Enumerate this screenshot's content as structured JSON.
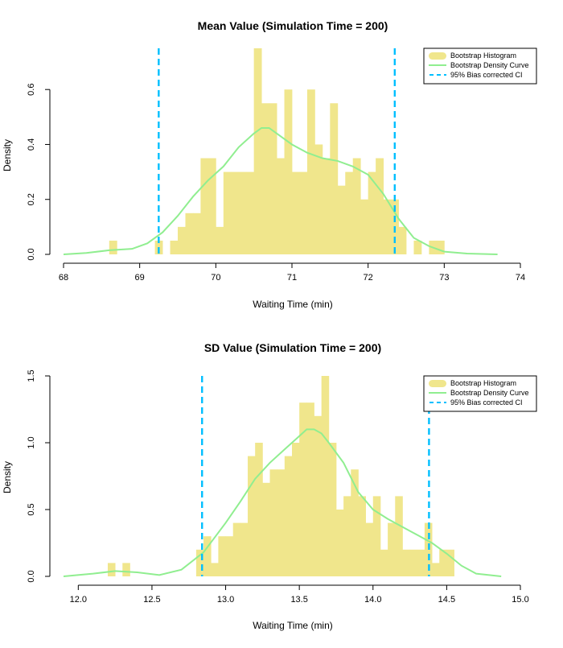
{
  "colors": {
    "histogram": "#F0E68C",
    "density": "#90EE90",
    "ci": "#00BFFF",
    "axis": "#000000"
  },
  "chart_data": [
    {
      "type": "bar",
      "title": "Mean Value (Simulation Time = 200)",
      "xlabel": "Waiting Time (min)",
      "ylabel": "Density",
      "xlim": [
        68,
        74
      ],
      "ylim": [
        0,
        0.75
      ],
      "x_ticks": [
        68,
        69,
        70,
        71,
        72,
        73,
        74
      ],
      "y_ticks": [
        0.0,
        0.2,
        0.4,
        0.6
      ],
      "x_tick_labels": [
        "68",
        "69",
        "70",
        "71",
        "72",
        "73",
        "74"
      ],
      "y_tick_labels": [
        "0.0",
        "0.2",
        "0.4",
        "0.6"
      ],
      "legend": {
        "position": "top-right",
        "entries": [
          "Bootstrap Histogram",
          "Bootstrap Density Curve",
          "95% Bias corrected CI"
        ]
      },
      "histogram": {
        "name": "Bootstrap Histogram",
        "bin_width": 0.1,
        "bins": [
          [
            68.6,
            0.05
          ],
          [
            69.2,
            0.05
          ],
          [
            69.4,
            0.05
          ],
          [
            69.5,
            0.1
          ],
          [
            69.6,
            0.15
          ],
          [
            69.7,
            0.15
          ],
          [
            69.8,
            0.35
          ],
          [
            69.9,
            0.35
          ],
          [
            70.0,
            0.1
          ],
          [
            70.1,
            0.3
          ],
          [
            70.2,
            0.3
          ],
          [
            70.3,
            0.3
          ],
          [
            70.4,
            0.3
          ],
          [
            70.5,
            0.75
          ],
          [
            70.6,
            0.55
          ],
          [
            70.7,
            0.55
          ],
          [
            70.8,
            0.35
          ],
          [
            70.9,
            0.6
          ],
          [
            71.0,
            0.3
          ],
          [
            71.1,
            0.3
          ],
          [
            71.2,
            0.6
          ],
          [
            71.3,
            0.4
          ],
          [
            71.4,
            0.35
          ],
          [
            71.5,
            0.55
          ],
          [
            71.6,
            0.25
          ],
          [
            71.7,
            0.3
          ],
          [
            71.8,
            0.35
          ],
          [
            71.9,
            0.2
          ],
          [
            72.0,
            0.3
          ],
          [
            72.1,
            0.35
          ],
          [
            72.2,
            0.2
          ],
          [
            72.3,
            0.2
          ],
          [
            72.4,
            0.1
          ],
          [
            72.6,
            0.05
          ],
          [
            72.8,
            0.05
          ],
          [
            72.9,
            0.05
          ]
        ]
      },
      "density": {
        "name": "Bootstrap Density Curve",
        "x": [
          68.0,
          68.3,
          68.6,
          68.9,
          69.1,
          69.3,
          69.5,
          69.7,
          69.9,
          70.1,
          70.3,
          70.5,
          70.6,
          70.7,
          70.8,
          71.0,
          71.2,
          71.4,
          71.6,
          71.8,
          72.0,
          72.2,
          72.4,
          72.6,
          72.8,
          73.0,
          73.3,
          73.7
        ],
        "y": [
          0.0,
          0.005,
          0.015,
          0.02,
          0.04,
          0.08,
          0.14,
          0.21,
          0.27,
          0.32,
          0.39,
          0.44,
          0.46,
          0.46,
          0.44,
          0.4,
          0.37,
          0.35,
          0.34,
          0.32,
          0.29,
          0.22,
          0.13,
          0.06,
          0.03,
          0.01,
          0.003,
          0.0
        ]
      },
      "ci": {
        "name": "95% Bias corrected CI",
        "lower": 69.25,
        "upper": 72.35
      }
    },
    {
      "type": "bar",
      "title": "SD Value (Simulation Time = 200)",
      "xlabel": "Waiting Time (min)",
      "ylabel": "Density",
      "xlim": [
        11.9,
        15.0
      ],
      "ylim": [
        0,
        1.5
      ],
      "x_ticks": [
        12.0,
        12.5,
        13.0,
        13.5,
        14.0,
        14.5,
        15.0
      ],
      "y_ticks": [
        0.0,
        0.5,
        1.0,
        1.5
      ],
      "x_tick_labels": [
        "12.0",
        "12.5",
        "13.0",
        "13.5",
        "14.0",
        "14.5",
        "15.0"
      ],
      "y_tick_labels": [
        "0.0",
        "0.5",
        "1.0",
        "1.5"
      ],
      "legend": {
        "position": "top-right",
        "entries": [
          "Bootstrap Histogram",
          "Bootstrap Density Curve",
          "95% Bias corrected CI"
        ]
      },
      "histogram": {
        "name": "Bootstrap Histogram",
        "bin_width": 0.05,
        "bins": [
          [
            12.2,
            0.1
          ],
          [
            12.3,
            0.1
          ],
          [
            12.8,
            0.2
          ],
          [
            12.85,
            0.3
          ],
          [
            12.9,
            0.1
          ],
          [
            12.95,
            0.3
          ],
          [
            13.0,
            0.3
          ],
          [
            13.05,
            0.4
          ],
          [
            13.1,
            0.4
          ],
          [
            13.15,
            0.9
          ],
          [
            13.2,
            1.0
          ],
          [
            13.25,
            0.7
          ],
          [
            13.3,
            0.8
          ],
          [
            13.35,
            0.8
          ],
          [
            13.4,
            0.9
          ],
          [
            13.45,
            1.0
          ],
          [
            13.5,
            1.3
          ],
          [
            13.55,
            1.3
          ],
          [
            13.6,
            1.2
          ],
          [
            13.65,
            1.5
          ],
          [
            13.7,
            1.0
          ],
          [
            13.75,
            0.5
          ],
          [
            13.8,
            0.6
          ],
          [
            13.85,
            0.8
          ],
          [
            13.9,
            0.6
          ],
          [
            13.95,
            0.4
          ],
          [
            14.0,
            0.6
          ],
          [
            14.05,
            0.2
          ],
          [
            14.1,
            0.4
          ],
          [
            14.15,
            0.6
          ],
          [
            14.2,
            0.2
          ],
          [
            14.25,
            0.2
          ],
          [
            14.3,
            0.2
          ],
          [
            14.35,
            0.4
          ],
          [
            14.4,
            0.1
          ],
          [
            14.45,
            0.2
          ],
          [
            14.5,
            0.2
          ]
        ]
      },
      "density": {
        "name": "Bootstrap Density Curve",
        "x": [
          11.9,
          12.1,
          12.25,
          12.4,
          12.55,
          12.7,
          12.85,
          13.0,
          13.1,
          13.2,
          13.3,
          13.4,
          13.5,
          13.55,
          13.6,
          13.65,
          13.7,
          13.8,
          13.9,
          14.0,
          14.1,
          14.2,
          14.3,
          14.4,
          14.5,
          14.6,
          14.7,
          14.87
        ],
        "y": [
          0.0,
          0.02,
          0.04,
          0.03,
          0.01,
          0.05,
          0.18,
          0.4,
          0.56,
          0.73,
          0.85,
          0.95,
          1.05,
          1.1,
          1.1,
          1.07,
          1.0,
          0.85,
          0.63,
          0.5,
          0.43,
          0.37,
          0.31,
          0.25,
          0.17,
          0.08,
          0.02,
          0.0
        ]
      },
      "ci": {
        "name": "95% Bias corrected CI",
        "lower": 12.84,
        "upper": 14.38
      }
    }
  ]
}
